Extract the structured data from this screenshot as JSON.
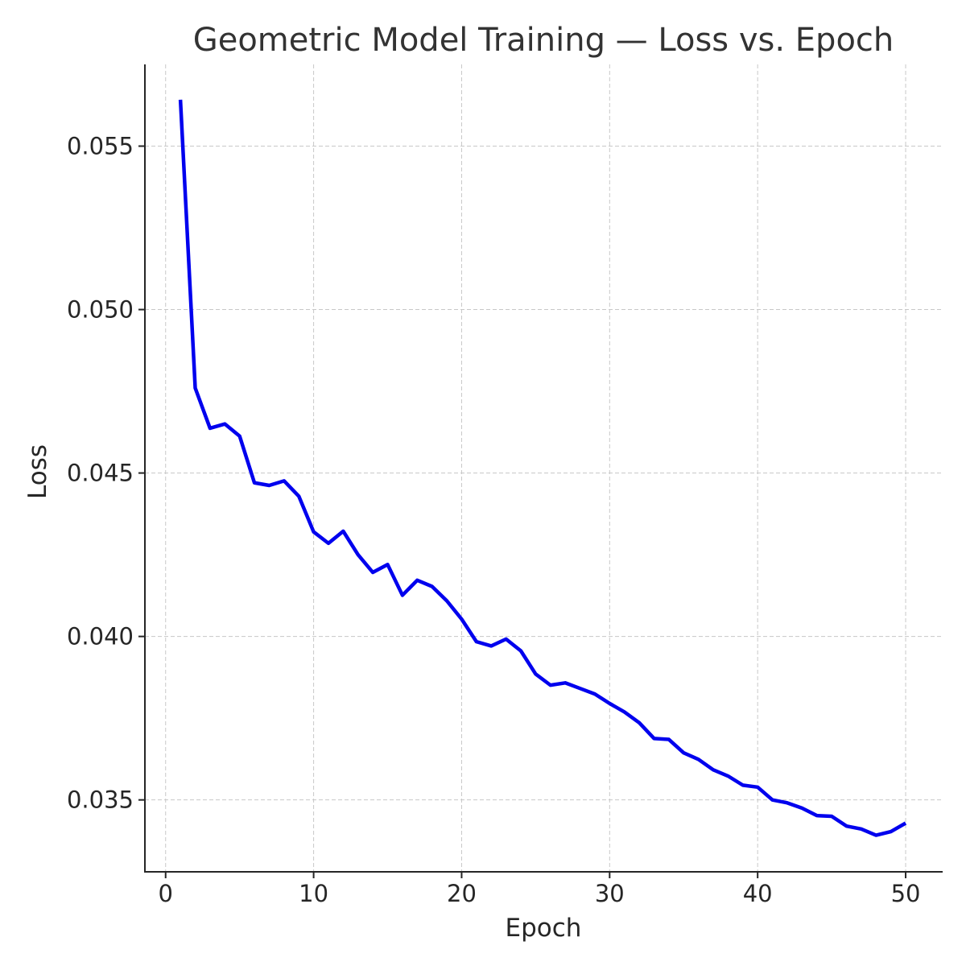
{
  "chart_data": {
    "type": "line",
    "title": "Geometric Model Training — Loss vs. Epoch",
    "xlabel": "Epoch",
    "ylabel": "Loss",
    "xlim": [
      -1.4,
      52.5
    ],
    "ylim": [
      0.0328,
      0.0575
    ],
    "xticks": [
      0,
      10,
      20,
      30,
      40,
      50
    ],
    "yticks": [
      0.035,
      0.04,
      0.045,
      0.05,
      0.055
    ],
    "xtick_labels": [
      "0",
      "10",
      "20",
      "30",
      "40",
      "50"
    ],
    "ytick_labels": [
      "0.035",
      "0.040",
      "0.045",
      "0.050",
      "0.055"
    ],
    "grid": true,
    "legend": "none",
    "series": [
      {
        "color": "#0000ee",
        "x": [
          1,
          2,
          3,
          4,
          5,
          6,
          7,
          8,
          9,
          10,
          11,
          12,
          13,
          14,
          15,
          16,
          17,
          18,
          19,
          20,
          21,
          22,
          23,
          24,
          25,
          26,
          27,
          28,
          29,
          30,
          31,
          32,
          33,
          34,
          35,
          36,
          37,
          38,
          39,
          40,
          41,
          42,
          43,
          44,
          45,
          46,
          47,
          48,
          49,
          50
        ],
        "y": [
          0.05642,
          0.0476,
          0.04637,
          0.0465,
          0.04613,
          0.0447,
          0.04462,
          0.04476,
          0.04429,
          0.0432,
          0.04285,
          0.04322,
          0.0425,
          0.04196,
          0.0422,
          0.04126,
          0.04172,
          0.04153,
          0.04109,
          0.04053,
          0.03984,
          0.03971,
          0.03992,
          0.03956,
          0.03885,
          0.03851,
          0.03858,
          0.03841,
          0.03824,
          0.03795,
          0.03769,
          0.03736,
          0.03688,
          0.03685,
          0.03644,
          0.03624,
          0.03592,
          0.03573,
          0.03545,
          0.03539,
          0.035,
          0.03491,
          0.03475,
          0.03452,
          0.0345,
          0.0342,
          0.03411,
          0.03392,
          0.03403,
          0.03429
        ]
      }
    ]
  }
}
